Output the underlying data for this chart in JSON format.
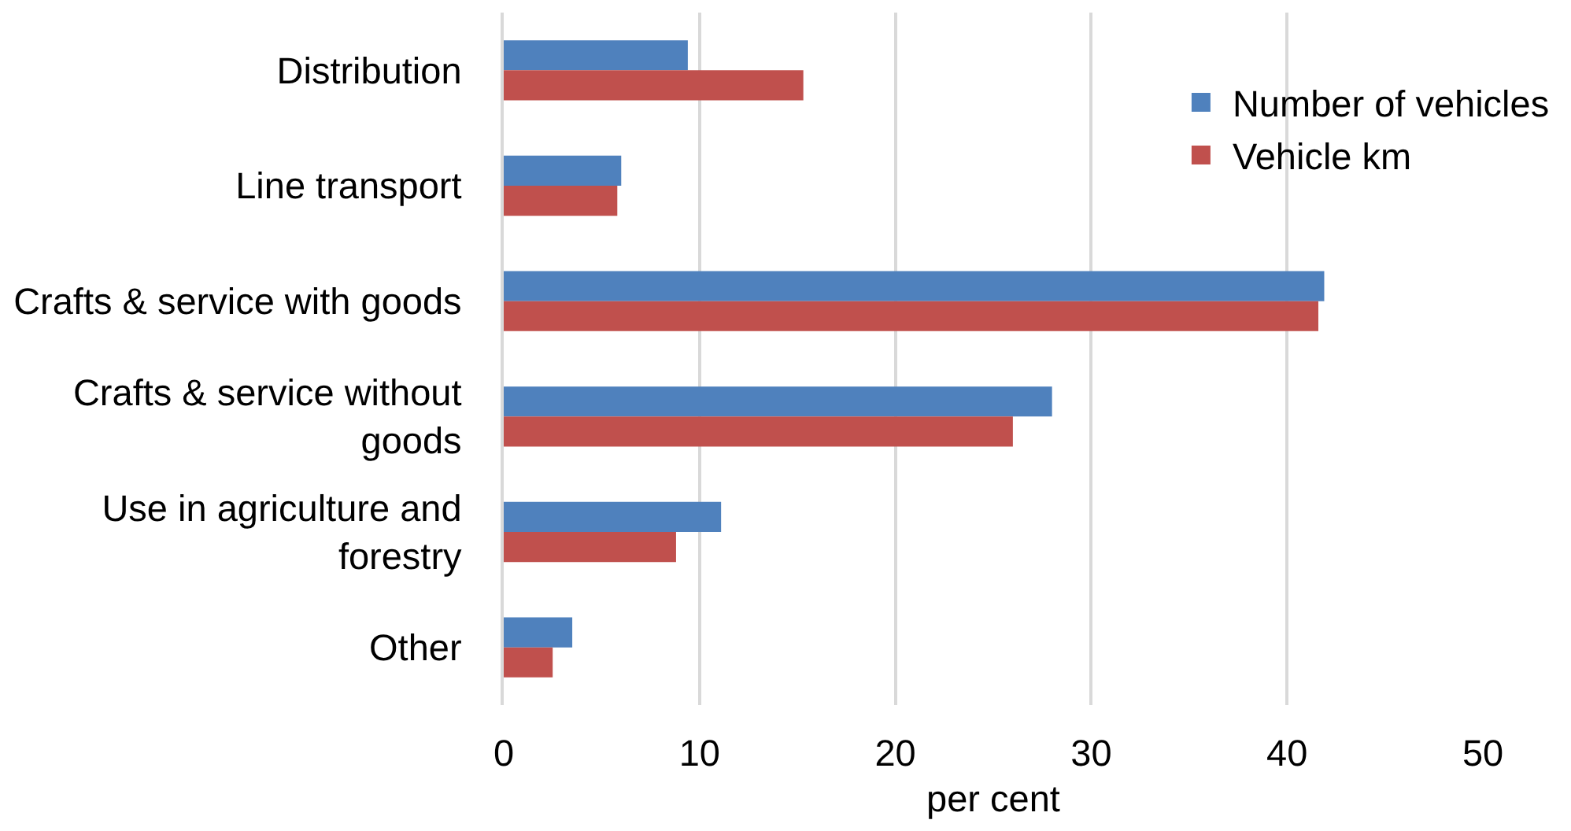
{
  "chart_data": {
    "type": "bar",
    "orientation": "horizontal",
    "categories": [
      "Distribution",
      "Line transport",
      "Crafts & service with goods",
      "Crafts & service without goods",
      "Use in agriculture and forestry",
      "Other"
    ],
    "series": [
      {
        "name": "Number of vehicles",
        "color": "#4f81bd",
        "values": [
          9.4,
          6.0,
          41.9,
          28.0,
          11.1,
          3.5
        ]
      },
      {
        "name": "Vehicle km",
        "color": "#c0504d",
        "values": [
          15.3,
          5.8,
          41.6,
          26.0,
          8.8,
          2.5
        ]
      }
    ],
    "xlabel": "per cent",
    "xlim": [
      0,
      50
    ],
    "xticks": [
      0,
      10,
      20,
      30,
      40,
      50
    ],
    "grid": "x",
    "legend": "top right"
  }
}
